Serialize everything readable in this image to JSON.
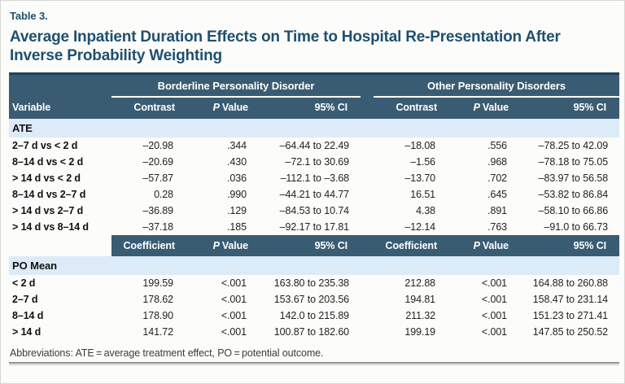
{
  "page": {
    "table_label": "Table 3.",
    "title": "Average Inpatient Duration Effects on Time to Hospital Re-Presentation After Inverse Probability Weighting",
    "footnote": "Abbreviations: ATE = average treatment effect, PO = potential outcome."
  },
  "colors": {
    "header_bg": "#3a5c73",
    "header_rule": "#1e4257",
    "section_bg": "#dcebf7",
    "title_color": "#1f506f"
  },
  "table": {
    "variable_label": "Variable",
    "group1_label": "Borderline Personality Disorder",
    "group2_label": "Other Personality Disorders",
    "ate_headers": {
      "contrast": "Contrast",
      "p_italic": "P",
      "p_rest": "Value",
      "ci": "95% CI"
    },
    "po_headers": {
      "coefficient": "Coefficient",
      "p_italic": "P",
      "p_rest": "Value",
      "ci": "95% CI"
    },
    "ate": {
      "label": "ATE",
      "rows": [
        {
          "variable": "2–7 d vs < 2 d",
          "values": [
            "–20.98",
            ".344",
            "–64.44 to 22.49",
            "–18.08",
            ".556",
            "–78.25 to 42.09"
          ]
        },
        {
          "variable": "8–14 d vs < 2 d",
          "values": [
            "–20.69",
            ".430",
            "–72.1 to 30.69",
            "–1.56",
            ".968",
            "–78.18 to 75.05"
          ]
        },
        {
          "variable": "> 14 d vs < 2 d",
          "values": [
            "–57.87",
            ".036",
            "–112.1 to –3.68",
            "–13.70",
            ".702",
            "–83.97 to 56.58"
          ]
        },
        {
          "variable": "8–14 d vs 2–7 d",
          "values": [
            "0.28",
            ".990",
            "–44.21 to 44.77",
            "16.51",
            ".645",
            "–53.82 to 86.84"
          ]
        },
        {
          "variable": "> 14 d vs 2–7 d",
          "values": [
            "–36.89",
            ".129",
            "–84.53 to 10.74",
            "4.38",
            ".891",
            "–58.10 to 66.86"
          ]
        },
        {
          "variable": "> 14 d vs 8–14 d",
          "values": [
            "–37.18",
            ".185",
            "–92.17 to 17.81",
            "–12.14",
            ".763",
            "–91.0 to 66.73"
          ]
        }
      ]
    },
    "po": {
      "label": "PO Mean",
      "rows": [
        {
          "variable": "< 2 d",
          "values": [
            "199.59",
            "<.001",
            "163.80 to 235.38",
            "212.88",
            "<.001",
            "164.88 to 260.88"
          ]
        },
        {
          "variable": "2–7 d",
          "values": [
            "178.62",
            "<.001",
            "153.67 to 203.56",
            "194.81",
            "<.001",
            "158.47 to 231.14"
          ]
        },
        {
          "variable": "8–14 d",
          "values": [
            "178.90",
            "<.001",
            "142.0 to 215.89",
            "211.32",
            "<.001",
            "151.23 to 271.41"
          ]
        },
        {
          "variable": "> 14 d",
          "values": [
            "141.72",
            "<.001",
            "100.87 to 182.60",
            "199.19",
            "<.001",
            "147.85 to 250.52"
          ]
        }
      ]
    }
  }
}
